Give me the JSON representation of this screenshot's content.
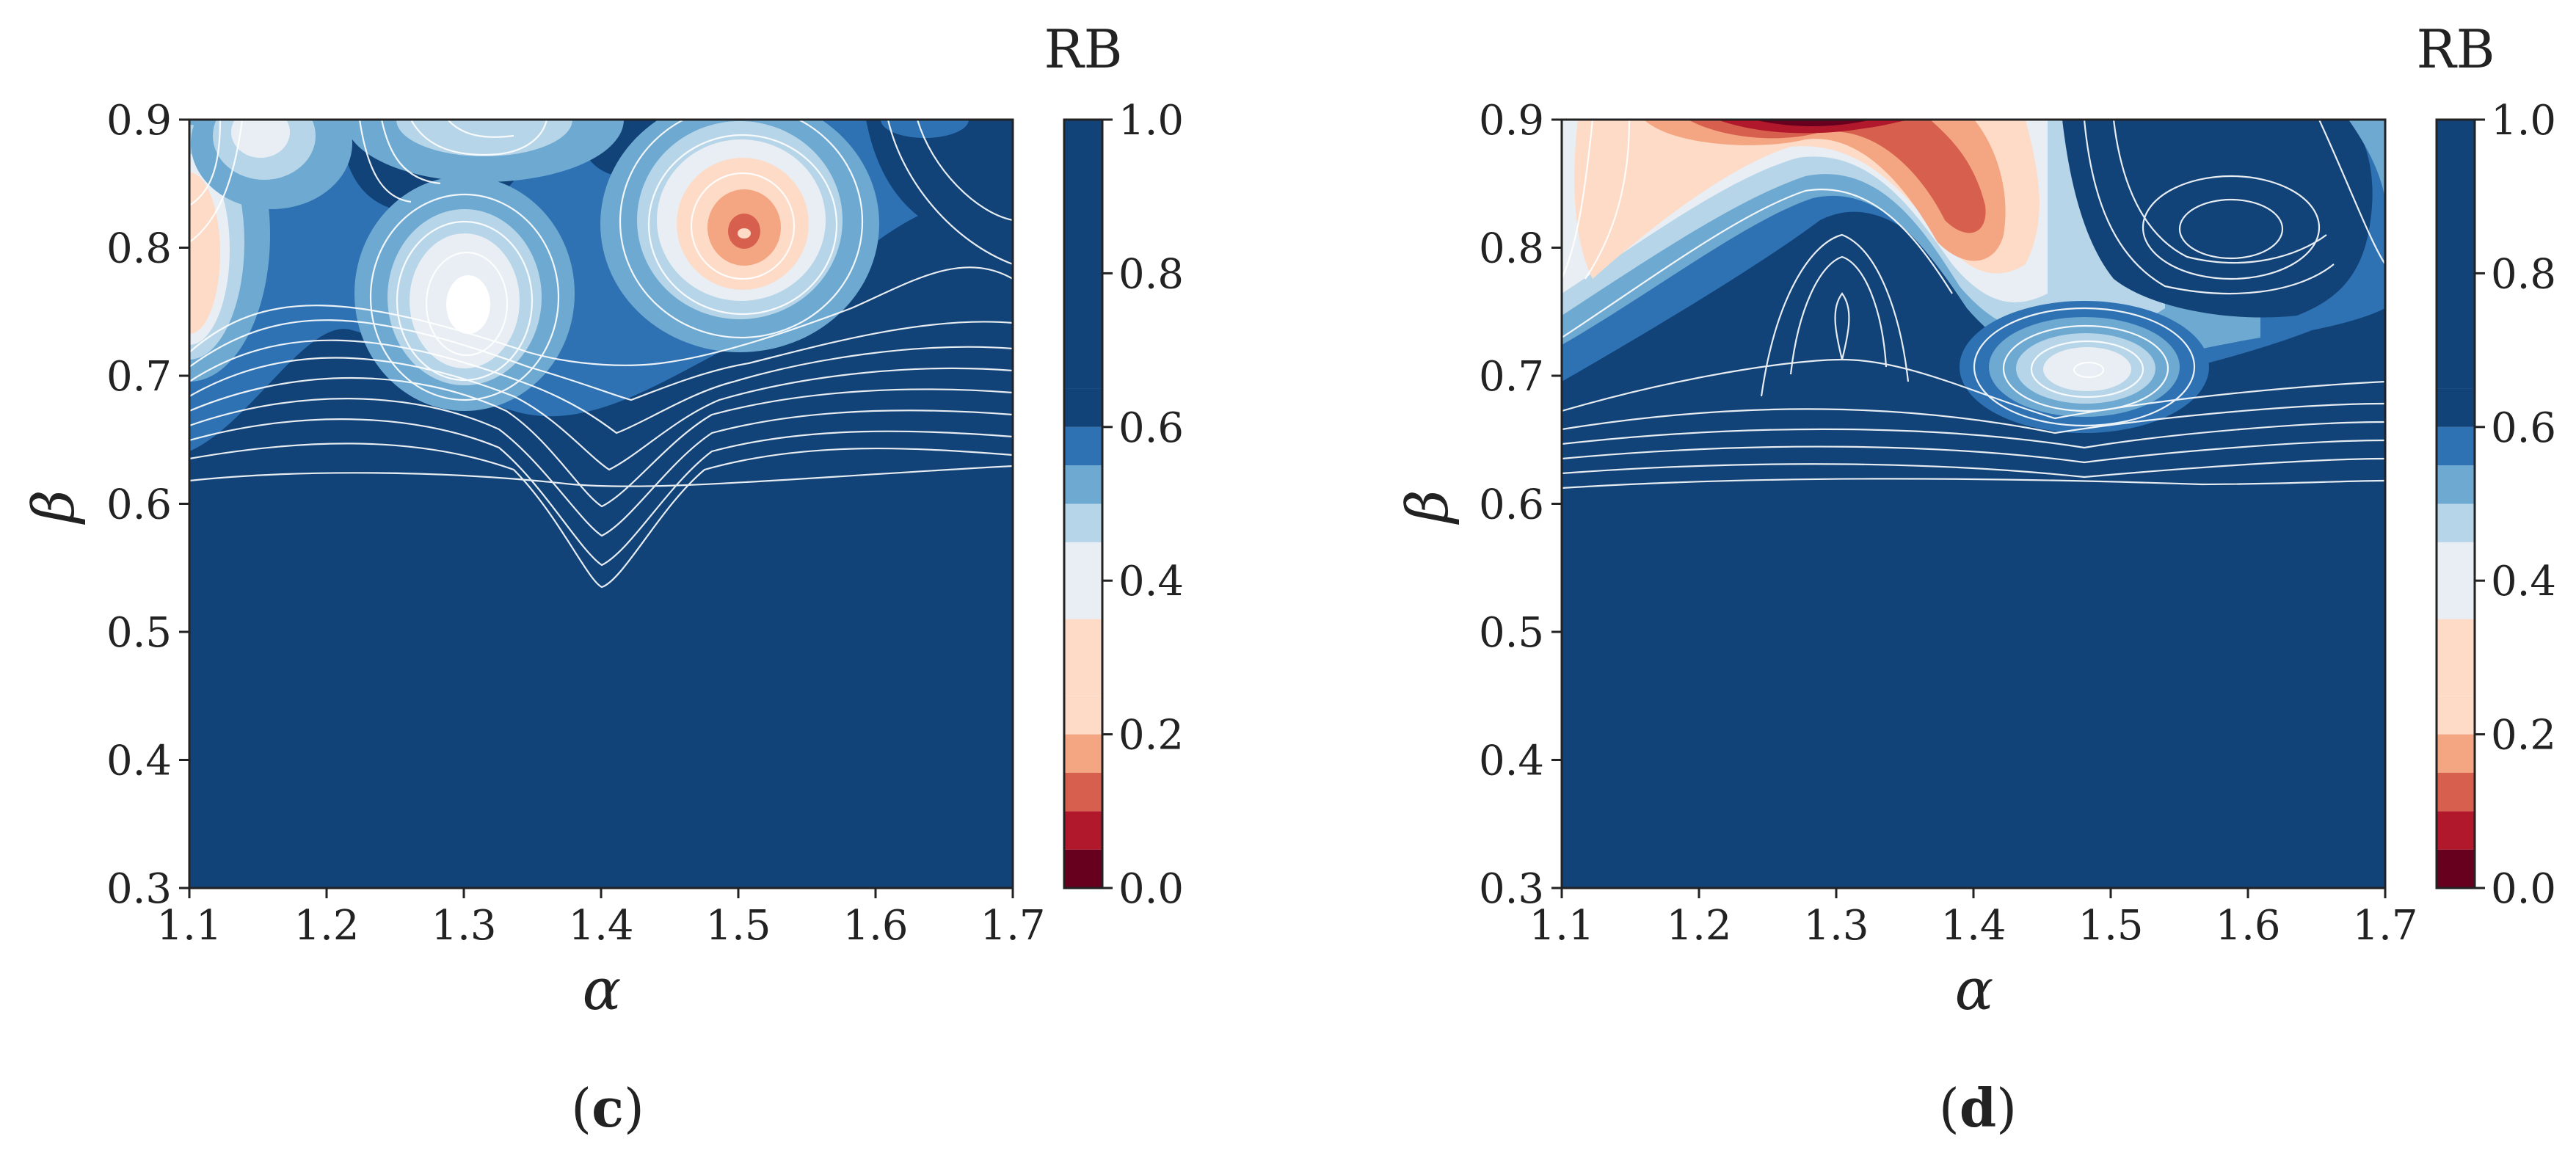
{
  "chart_data": [
    {
      "type": "heatmap",
      "subtype": "filled-contour",
      "panel_label": "c",
      "xlabel": "α",
      "ylabel": "β",
      "xlim": [
        1.1,
        1.7
      ],
      "ylim": [
        0.3,
        0.9
      ],
      "xticks": [
        "1.1",
        "1.2",
        "1.3",
        "1.4",
        "1.5",
        "1.6",
        "1.7"
      ],
      "yticks": [
        "0.3",
        "0.4",
        "0.5",
        "0.6",
        "0.7",
        "0.8",
        "0.9"
      ],
      "colorbar": {
        "title": "RB",
        "range": [
          0.0,
          1.0
        ],
        "ticks": [
          "0.0",
          "0.2",
          "0.4",
          "0.6",
          "0.8",
          "1.0"
        ]
      },
      "features": [
        {
          "kind": "low",
          "center": [
            1.5,
            0.81
          ],
          "value": 0.1
        },
        {
          "kind": "low",
          "center": [
            1.3,
            0.75
          ],
          "value": 0.4
        },
        {
          "kind": "low",
          "center": [
            1.1,
            0.79
          ],
          "value": 0.35
        },
        {
          "kind": "trough",
          "center": [
            1.4,
            0.54
          ],
          "note": "contour dip down to β≈0.54 at α≈1.4"
        }
      ]
    },
    {
      "type": "heatmap",
      "subtype": "filled-contour",
      "panel_label": "d",
      "xlabel": "α",
      "ylabel": "β",
      "xlim": [
        1.1,
        1.7
      ],
      "ylim": [
        0.3,
        0.9
      ],
      "xticks": [
        "1.1",
        "1.2",
        "1.3",
        "1.4",
        "1.5",
        "1.6",
        "1.7"
      ],
      "yticks": [
        "0.3",
        "0.4",
        "0.5",
        "0.6",
        "0.7",
        "0.8",
        "0.9"
      ],
      "colorbar": {
        "title": "RB",
        "range": [
          0.0,
          1.0
        ],
        "ticks": [
          "0.0",
          "0.2",
          "0.4",
          "0.6",
          "0.8",
          "1.0"
        ]
      },
      "features": [
        {
          "kind": "low",
          "center": [
            1.28,
            0.9
          ],
          "value": 0.05
        },
        {
          "kind": "low",
          "center": [
            1.4,
            0.81
          ],
          "value": 0.2
        },
        {
          "kind": "low",
          "center": [
            1.15,
            0.8
          ],
          "value": 0.3
        },
        {
          "kind": "low",
          "center": [
            1.49,
            0.7
          ],
          "value": 0.45
        },
        {
          "kind": "high",
          "center": [
            1.55,
            0.82
          ],
          "value": 1.0
        }
      ]
    }
  ],
  "colormap": {
    "levels": [
      0.0,
      0.1,
      0.2,
      0.3,
      0.4,
      0.5,
      0.6,
      0.7,
      1.0
    ],
    "colors": [
      "#67001f",
      "#b2182b",
      "#d6604d",
      "#f4a582",
      "#fddbc7",
      "#e8eef3",
      "#b7d5e8",
      "#6ea9d1",
      "#2f72b3",
      "#114379"
    ]
  }
}
